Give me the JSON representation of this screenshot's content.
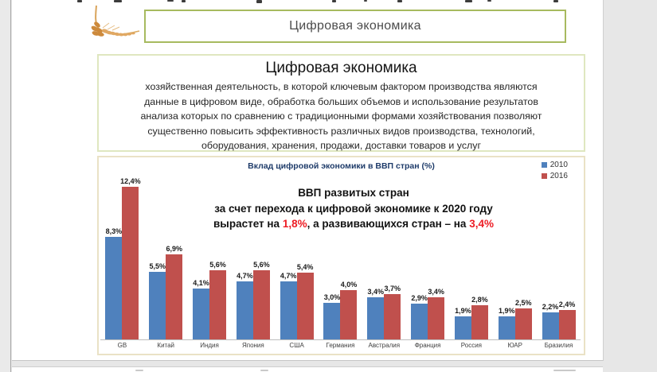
{
  "colors": {
    "series_2010": "#4f81bd",
    "series_2016": "#c0504d",
    "accent_green_border": "#a7ba5f",
    "chart_title_navy": "#1f3c6a",
    "annotation_red": "#ed1c24"
  },
  "header": {
    "title": "Цифровая экономика"
  },
  "info_box": {
    "title": "Цифровая экономика",
    "lines": [
      "хозяйственная деятельность, в которой ключевым фактором производства являются",
      "данные в цифровом виде, обработка больших объемов и использование результатов",
      "анализа которых по сравнению с традиционными формами хозяйствования позволяют",
      "существенно повысить эффективность различных видов производства, технологий,",
      "оборудования, хранения, продажи, доставки товаров и услуг"
    ]
  },
  "chart": {
    "annotation": {
      "line1": "ВВП развитых стран",
      "line2": "за счет перехода к цифровой экономике к 2020 году",
      "line3_pre": "вырастет на ",
      "line3_red1": "1,8%",
      "line3_mid": ", а развивающихся стран – на ",
      "line3_red2": "3,4%"
    }
  },
  "chart_data": {
    "type": "bar",
    "title": "Вклад цифровой экономики в ВВП стран (%)",
    "categories": [
      "GB",
      "Китай",
      "Индия",
      "Япония",
      "США",
      "Германия",
      "Австралия",
      "Франция",
      "Россия",
      "ЮАР",
      "Бразилия"
    ],
    "series": [
      {
        "name": "2010",
        "color": "#4f81bd",
        "values": [
          8.3,
          5.5,
          4.1,
          4.7,
          4.7,
          3.0,
          3.4,
          2.9,
          1.9,
          1.9,
          2.2
        ]
      },
      {
        "name": "2016",
        "color": "#c0504d",
        "values": [
          12.4,
          6.9,
          5.6,
          5.6,
          5.4,
          4.0,
          3.7,
          3.4,
          2.8,
          2.5,
          2.4
        ]
      }
    ],
    "value_label_format": "comma-decimal-percent",
    "ylim": [
      0,
      13
    ],
    "grid": false,
    "legend_position": "top-right",
    "data_labels": true
  }
}
